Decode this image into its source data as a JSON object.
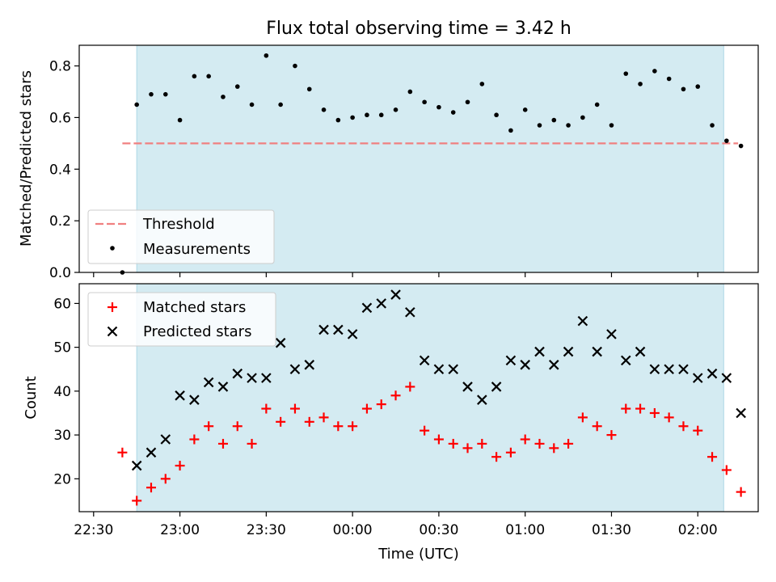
{
  "title": "Flux total observing time = 3.42 h",
  "chart_data": [
    {
      "type": "scatter",
      "ylabel": "Matched/Predicted stars",
      "ylim": [
        0,
        0.88
      ],
      "yticks": [
        "0.0",
        "0.2",
        "0.4",
        "0.6",
        "0.8"
      ],
      "ytick_values": [
        0,
        0.2,
        0.4,
        0.6,
        0.8
      ],
      "xlim": [
        -5,
        231
      ],
      "shaded_span": [
        15,
        219
      ],
      "shade_color": "#add8e6",
      "threshold": {
        "name": "Threshold",
        "value": 0.5,
        "x": [
          10,
          224
        ],
        "color": "#f08080"
      },
      "series": [
        {
          "name": "Measurements",
          "color": "#000000",
          "x": [
            10,
            15,
            20,
            25,
            30,
            35,
            40,
            45,
            50,
            55,
            60,
            65,
            70,
            75,
            80,
            85,
            90,
            95,
            100,
            105,
            110,
            115,
            120,
            125,
            130,
            135,
            140,
            145,
            150,
            155,
            160,
            165,
            170,
            175,
            180,
            185,
            190,
            195,
            200,
            205,
            210,
            215,
            220,
            225
          ],
          "y": [
            0.0,
            0.65,
            0.69,
            0.69,
            0.59,
            0.76,
            0.76,
            0.68,
            0.72,
            0.65,
            0.84,
            0.65,
            0.8,
            0.71,
            0.63,
            0.59,
            0.6,
            0.61,
            0.61,
            0.63,
            0.7,
            0.66,
            0.64,
            0.62,
            0.66,
            0.73,
            0.61,
            0.55,
            0.63,
            0.57,
            0.59,
            0.57,
            0.6,
            0.65,
            0.57,
            0.77,
            0.73,
            0.78,
            0.75,
            0.71,
            0.72,
            0.57,
            0.51,
            0.49
          ]
        }
      ]
    },
    {
      "type": "scatter",
      "ylabel": "Count",
      "xlabel": "Time (UTC)",
      "ylim": [
        12.5,
        64.5
      ],
      "yticks": [
        "20",
        "30",
        "40",
        "50",
        "60"
      ],
      "ytick_values": [
        20,
        30,
        40,
        50,
        60
      ],
      "xlim": [
        -5,
        231
      ],
      "xticks": [
        "22:30",
        "23:00",
        "23:30",
        "00:00",
        "00:30",
        "01:00",
        "01:30",
        "02:00"
      ],
      "xtick_values": [
        0,
        30,
        60,
        90,
        120,
        150,
        180,
        210
      ],
      "shaded_span": [
        15,
        219
      ],
      "shade_color": "#add8e6",
      "series": [
        {
          "name": "Matched stars",
          "marker": "plus",
          "color": "#ff0000",
          "x": [
            10,
            15,
            20,
            25,
            30,
            35,
            40,
            45,
            50,
            55,
            60,
            65,
            70,
            75,
            80,
            85,
            90,
            95,
            100,
            105,
            110,
            115,
            120,
            125,
            130,
            135,
            140,
            145,
            150,
            155,
            160,
            165,
            170,
            175,
            180,
            185,
            190,
            195,
            200,
            205,
            210,
            215,
            220,
            225
          ],
          "y": [
            26,
            15,
            18,
            20,
            23,
            29,
            32,
            28,
            32,
            28,
            36,
            33,
            36,
            33,
            34,
            32,
            32,
            36,
            37,
            39,
            41,
            31,
            29,
            28,
            27,
            28,
            25,
            26,
            29,
            28,
            27,
            28,
            34,
            32,
            30,
            36,
            36,
            35,
            34,
            32,
            31,
            25,
            22,
            17
          ]
        },
        {
          "name": "Predicted stars",
          "marker": "x",
          "color": "#000000",
          "x": [
            15,
            20,
            25,
            30,
            35,
            40,
            45,
            50,
            55,
            60,
            65,
            70,
            75,
            80,
            85,
            90,
            95,
            100,
            105,
            110,
            115,
            120,
            125,
            130,
            135,
            140,
            145,
            150,
            155,
            160,
            165,
            170,
            175,
            180,
            185,
            190,
            195,
            200,
            205,
            210,
            215,
            220,
            225
          ],
          "y": [
            23,
            26,
            29,
            39,
            38,
            42,
            41,
            44,
            43,
            43,
            51,
            45,
            46,
            54,
            54,
            53,
            59,
            60,
            62,
            58,
            47,
            45,
            45,
            41,
            38,
            41,
            47,
            46,
            49,
            46,
            49,
            56,
            49,
            53,
            47,
            49,
            45,
            45,
            45,
            43,
            44,
            43,
            35
          ]
        }
      ]
    }
  ]
}
